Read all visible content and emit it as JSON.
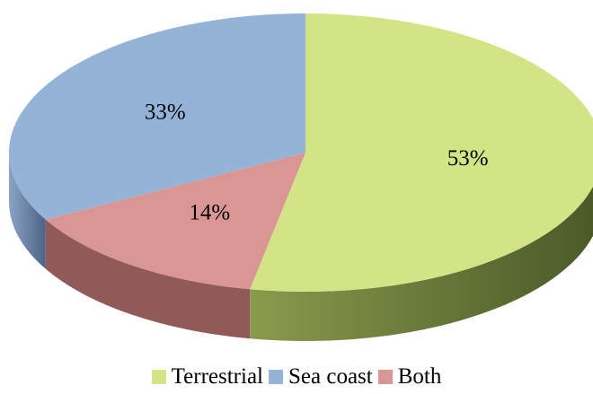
{
  "chart_data": {
    "type": "pie",
    "style": "3d",
    "title": "",
    "legend_position": "bottom",
    "slices": [
      {
        "label": "Terrestrial",
        "value": 53,
        "value_label": "53%",
        "color": "#d2e485",
        "side_color": "#6b7a3a"
      },
      {
        "label": "Both",
        "value": 14,
        "value_label": "14%",
        "color": "#d99694",
        "side_color": "#8f5a58"
      },
      {
        "label": "Sea coast",
        "value": 33,
        "value_label": "33%",
        "color": "#95b3d7",
        "side_color": "#5f7594"
      }
    ]
  },
  "legend": {
    "items": [
      {
        "label": "Terrestrial",
        "color": "#d2e485"
      },
      {
        "label": "Sea coast",
        "color": "#95b3d7"
      },
      {
        "label": "Both",
        "color": "#d99694"
      }
    ]
  }
}
